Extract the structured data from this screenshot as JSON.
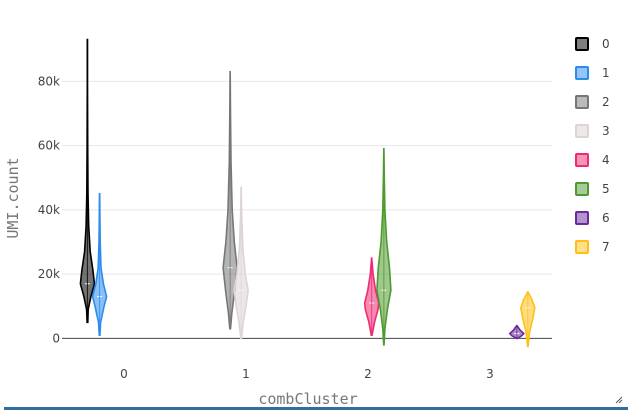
{
  "chart_data": {
    "type": "violin",
    "xlabel": "combCluster",
    "ylabel": "UMI.count",
    "categories": [
      "0",
      "1",
      "2",
      "3"
    ],
    "yticks": [
      0,
      20000,
      40000,
      60000,
      80000
    ],
    "ytick_labels": [
      "0",
      "20k",
      "40k",
      "60k",
      "80k"
    ],
    "ylim": [
      -3000,
      96000
    ],
    "grid": true,
    "legend_position": "right",
    "series": [
      {
        "name": "0",
        "category": "0",
        "offset": -0.3,
        "color": "#000000",
        "profile": [
          [
            5000,
            0.05
          ],
          [
            9000,
            0.12
          ],
          [
            13000,
            0.5
          ],
          [
            17000,
            1.0
          ],
          [
            21000,
            0.8
          ],
          [
            27000,
            0.4
          ],
          [
            35000,
            0.18
          ],
          [
            45000,
            0.08
          ],
          [
            60000,
            0.04
          ],
          [
            80000,
            0.02
          ],
          [
            93000,
            0.01
          ]
        ]
      },
      {
        "name": "1",
        "category": "0",
        "offset": -0.2,
        "color": "#2b8cee",
        "profile": [
          [
            1000,
            0.04
          ],
          [
            5000,
            0.15
          ],
          [
            10000,
            0.65
          ],
          [
            13000,
            1.0
          ],
          [
            17000,
            0.55
          ],
          [
            22000,
            0.2
          ],
          [
            30000,
            0.08
          ],
          [
            38000,
            0.04
          ],
          [
            45000,
            0.01
          ]
        ]
      },
      {
        "name": "2",
        "category": "1",
        "offset": -0.13,
        "color": "#777777",
        "profile": [
          [
            3000,
            0.05
          ],
          [
            8000,
            0.25
          ],
          [
            14000,
            0.6
          ],
          [
            22000,
            1.0
          ],
          [
            30000,
            0.6
          ],
          [
            40000,
            0.3
          ],
          [
            55000,
            0.12
          ],
          [
            70000,
            0.05
          ],
          [
            83000,
            0.01
          ]
        ]
      },
      {
        "name": "3",
        "category": "1",
        "offset": -0.04,
        "color": "#ddd4d4",
        "profile": [
          [
            0,
            0.05
          ],
          [
            5000,
            0.3
          ],
          [
            10000,
            0.7
          ],
          [
            15000,
            1.0
          ],
          [
            20000,
            0.6
          ],
          [
            28000,
            0.25
          ],
          [
            38000,
            0.08
          ],
          [
            47000,
            0.01
          ]
        ]
      },
      {
        "name": "4",
        "category": "2",
        "offset": 0.03,
        "color": "#ee2a72",
        "profile": [
          [
            1000,
            0.05
          ],
          [
            5000,
            0.4
          ],
          [
            9000,
            0.9
          ],
          [
            11000,
            1.0
          ],
          [
            15000,
            0.55
          ],
          [
            20000,
            0.2
          ],
          [
            25000,
            0.01
          ]
        ]
      },
      {
        "name": "5",
        "category": "2",
        "offset": 0.13,
        "color": "#4e9a2f",
        "profile": [
          [
            -2000,
            0.02
          ],
          [
            3000,
            0.15
          ],
          [
            9000,
            0.5
          ],
          [
            15000,
            1.0
          ],
          [
            22000,
            0.8
          ],
          [
            30000,
            0.4
          ],
          [
            40000,
            0.15
          ],
          [
            50000,
            0.06
          ],
          [
            59000,
            0.01
          ]
        ]
      },
      {
        "name": "6",
        "category": "3",
        "offset": 0.22,
        "color": "#6a2a9a",
        "profile": [
          [
            0,
            0.05
          ],
          [
            800,
            0.7
          ],
          [
            1500,
            1.0
          ],
          [
            2500,
            0.5
          ],
          [
            4000,
            0.01
          ]
        ]
      },
      {
        "name": "7",
        "category": "3",
        "offset": 0.31,
        "color": "#ffbf17",
        "profile": [
          [
            -2500,
            0.02
          ],
          [
            2000,
            0.25
          ],
          [
            6000,
            0.7
          ],
          [
            9500,
            1.0
          ],
          [
            12000,
            0.6
          ],
          [
            14500,
            0.01
          ]
        ]
      }
    ]
  }
}
